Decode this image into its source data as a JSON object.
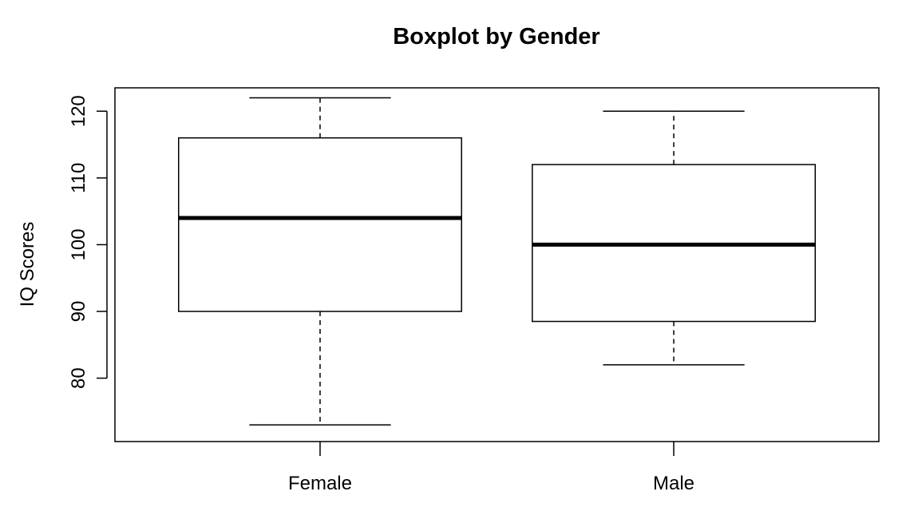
{
  "chart_data": {
    "type": "boxplot",
    "title": "Boxplot by Gender",
    "xlabel": "",
    "ylabel": "IQ Scores",
    "ylim": [
      70.5,
      123.5
    ],
    "yticks": [
      80,
      90,
      100,
      110,
      120
    ],
    "ytick_labels": [
      "80",
      "90",
      "100",
      "110",
      "120"
    ],
    "grid": false,
    "groups": [
      {
        "label": "Female",
        "whisker_low": 73,
        "q1": 90,
        "median": 104,
        "q3": 116,
        "whisker_high": 122
      },
      {
        "label": "Male",
        "whisker_low": 82,
        "q1": 88.5,
        "median": 100,
        "q3": 112,
        "whisker_high": 120
      }
    ]
  }
}
